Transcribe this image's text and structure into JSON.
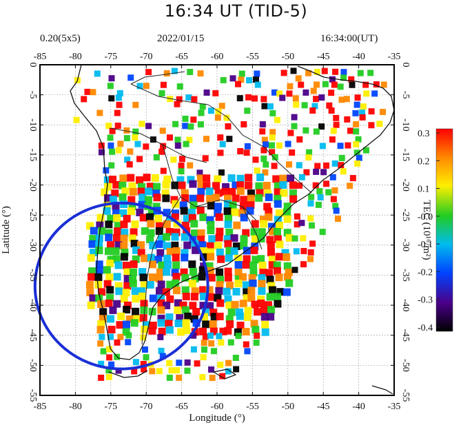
{
  "figure": {
    "title": "16:34 UT (TID-5)",
    "header_left": "0.20(5x5)",
    "header_center": "2022/01/15",
    "header_right": "16:34:00(UT)"
  },
  "map": {
    "region": "South America",
    "lon_range": [
      -85,
      -35
    ],
    "lat_range": [
      -55,
      0
    ],
    "lon_ticks": [
      -85,
      -80,
      -75,
      -70,
      -65,
      -60,
      -55,
      -50,
      -45,
      -40,
      -35
    ],
    "lat_ticks": [
      0,
      -5,
      -10,
      -15,
      -20,
      -25,
      -30,
      -35,
      -40,
      -45,
      -50,
      -55
    ],
    "xlabel": "Longitude (°)",
    "ylabel": "Latitude (°)",
    "grid": true,
    "highlight": {
      "shape": "ellipse",
      "color": "#1a2fd6",
      "center_lon": -73.5,
      "center_lat": -36.8,
      "radius_lon_deg": 12.2,
      "radius_lat_deg": 13.8
    }
  },
  "colorbar": {
    "label": "TEC (10¹⁶/m²)",
    "min": -0.4,
    "max": 0.3,
    "tick_labels": [
      "0.3",
      "0.2",
      "0.1",
      "-0.0",
      "-0.1",
      "-0.2",
      "-0.3",
      "-0.4"
    ],
    "tick_values": [
      0.3,
      0.2,
      0.1,
      0.0,
      -0.1,
      -0.2,
      -0.3,
      -0.4
    ],
    "colors": [
      "#ff0000",
      "#ff8800",
      "#ffee00",
      "#22cc22",
      "#00bbee",
      "#0044ff",
      "#4a0088",
      "#000000"
    ]
  }
}
